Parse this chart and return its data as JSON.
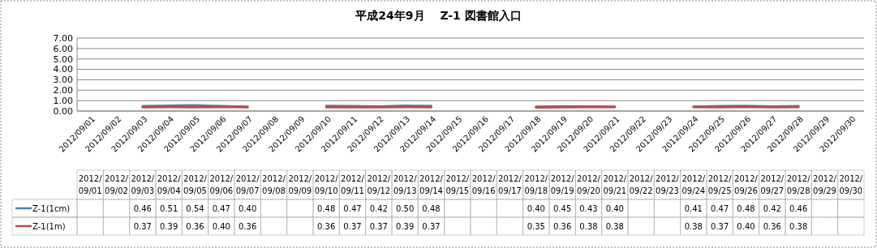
{
  "chart_data": {
    "type": "line",
    "title": "平成24年9月　 Z-1 図書館入口",
    "categories": [
      "2012/09/01",
      "2012/09/02",
      "2012/09/03",
      "2012/09/04",
      "2012/09/05",
      "2012/09/06",
      "2012/09/07",
      "2012/09/08",
      "2012/09/09",
      "2012/09/10",
      "2012/09/11",
      "2012/09/12",
      "2012/09/13",
      "2012/09/14",
      "2012/09/15",
      "2012/09/16",
      "2012/09/17",
      "2012/09/18",
      "2012/09/19",
      "2012/09/20",
      "2012/09/21",
      "2012/09/22",
      "2012/09/23",
      "2012/09/24",
      "2012/09/25",
      "2012/09/26",
      "2012/09/27",
      "2012/09/28",
      "2012/09/29",
      "2012/09/30"
    ],
    "series": [
      {
        "name": "Z-1(1cm)",
        "color": "#4a7ebb",
        "values": [
          null,
          null,
          0.46,
          0.51,
          0.54,
          0.47,
          0.4,
          null,
          null,
          0.48,
          0.47,
          0.42,
          0.5,
          0.48,
          null,
          null,
          null,
          0.4,
          0.45,
          0.43,
          0.4,
          null,
          null,
          0.41,
          0.47,
          0.48,
          0.42,
          0.46,
          null,
          null
        ],
        "value_labels": [
          null,
          null,
          "0.46",
          "0.51",
          "0.54",
          "0.47",
          "0.40",
          null,
          null,
          "0.48",
          "0.47",
          "0.42",
          "0.50",
          "0.48",
          null,
          null,
          null,
          "0.40",
          "0.45",
          "0.43",
          "0.40",
          null,
          null,
          "0.41",
          "0.47",
          "0.48",
          "0.42",
          "0.46",
          null,
          null
        ]
      },
      {
        "name": "Z-1(1m)",
        "color": "#be4b48",
        "values": [
          null,
          null,
          0.37,
          0.39,
          0.36,
          0.4,
          0.36,
          null,
          null,
          0.36,
          0.37,
          0.37,
          0.39,
          0.37,
          null,
          null,
          null,
          0.35,
          0.36,
          0.38,
          0.38,
          null,
          null,
          0.38,
          0.37,
          0.4,
          0.36,
          0.38,
          null,
          null
        ],
        "value_labels": [
          null,
          null,
          "0.37",
          "0.39",
          "0.36",
          "0.40",
          "0.36",
          null,
          null,
          "0.36",
          "0.37",
          "0.37",
          "0.39",
          "0.37",
          null,
          null,
          null,
          "0.35",
          "0.36",
          "0.38",
          "0.38",
          null,
          null,
          "0.38",
          "0.37",
          "0.40",
          "0.36",
          "0.38",
          null,
          null
        ]
      }
    ],
    "ylim": [
      0,
      7
    ],
    "yticks": [
      {
        "value": 0,
        "label": "0.00"
      },
      {
        "value": 1,
        "label": "1.00"
      },
      {
        "value": 2,
        "label": "2.00"
      },
      {
        "value": 3,
        "label": "3.00"
      },
      {
        "value": 4,
        "label": "4.00"
      },
      {
        "value": 5,
        "label": "5.00"
      },
      {
        "value": 6,
        "label": "6.00"
      },
      {
        "value": 7,
        "label": "7.00"
      }
    ],
    "grid": "y",
    "legend": "bottom left",
    "marker": "none",
    "line_style": "solid"
  }
}
